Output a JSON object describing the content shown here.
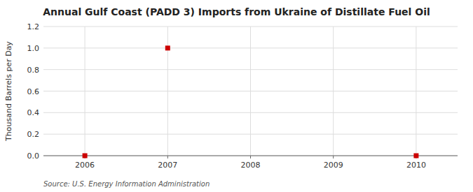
{
  "chart_data": {
    "type": "scatter",
    "title": "Annual Gulf Coast (PADD 3) Imports from Ukraine of Distillate Fuel Oil",
    "ylabel": "Thousand Barrels per Day",
    "source": "Source: U.S. Energy Information Administration",
    "x": [
      2006,
      2007,
      2010
    ],
    "values": [
      0.0,
      1.0,
      0.0
    ],
    "xlim": [
      2005.5,
      2010.5
    ],
    "ylim": [
      0.0,
      1.2
    ],
    "xticks": [
      2006,
      2007,
      2008,
      2009,
      2010
    ],
    "yticks": [
      {
        "value": 0.0,
        "label": "0.0"
      },
      0.2,
      0.4,
      0.6,
      0.8,
      {
        "value": 1.0,
        "label": "1.0"
      },
      1.2
    ],
    "color": "#cc0000",
    "marker": "square",
    "grid": true
  }
}
